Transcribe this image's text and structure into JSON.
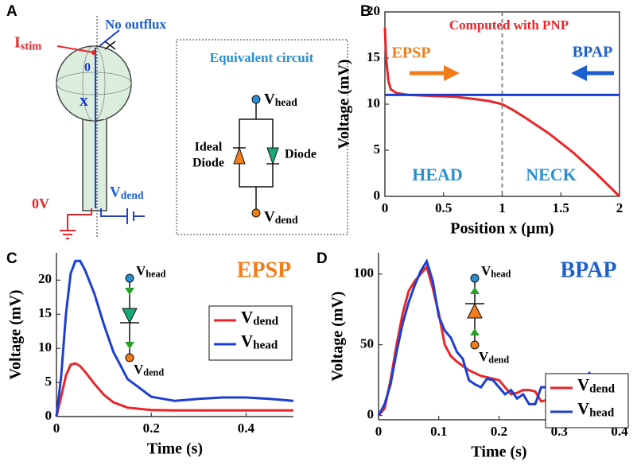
{
  "panel_labels": [
    "A",
    "B",
    "C",
    "D"
  ],
  "diagram": {
    "stimulus": "Istim",
    "boundary": "No outflux",
    "origin": "0",
    "axis": "x",
    "ground": "0V",
    "dend_source": "Vdend",
    "circuit_title": "Equivalent circuit",
    "circuit_top": "Vhead",
    "ideal_diode": [
      "Ideal",
      "Diode"
    ],
    "diode": "Diode",
    "circuit_bottom": "Vdend"
  },
  "chart_data": [
    {
      "type": "line",
      "xlabel": "Position x (µm)",
      "ylabel": "Voltage (mV)",
      "x": [
        0,
        0.01,
        0.03,
        0.05,
        0.1,
        0.2,
        0.4,
        0.6,
        0.8,
        0.9,
        1.0,
        1.1,
        1.2,
        1.4,
        1.6,
        1.8,
        2.0
      ],
      "series": [
        {
          "color": "#e8262a",
          "values": [
            18.3,
            15,
            12.5,
            11.6,
            11.2,
            11.0,
            10.9,
            10.8,
            10.5,
            10.3,
            10.0,
            9.3,
            8.5,
            6.8,
            4.8,
            2.5,
            0
          ]
        },
        {
          "color": "#1c3fd1",
          "values": [
            11,
            11,
            11,
            11,
            11,
            11,
            11,
            11,
            11,
            11,
            11,
            11,
            11,
            11,
            11,
            11,
            11
          ]
        }
      ],
      "xlim": [
        0,
        2
      ],
      "ylim": [
        0,
        20
      ],
      "xticks": [
        0,
        0.5,
        1,
        1.5,
        2
      ],
      "yticks": [
        0,
        5,
        10,
        15,
        20
      ],
      "vline": 1,
      "box": true,
      "annotations": [
        {
          "text": "Computed with PNP",
          "color": "#e8262a"
        },
        {
          "text": "EPSP",
          "color": "#f07d1a"
        },
        {
          "text": "BPAP",
          "color": "#1c5fd1"
        },
        {
          "text": "HEAD",
          "color": "#2a8fd1"
        },
        {
          "text": "NECK",
          "color": "#2a8fd1"
        }
      ]
    },
    {
      "type": "line",
      "title": "EPSP",
      "title_color": "#f07d1a",
      "xlabel": "Time (s)",
      "ylabel": "Voltage (mV)",
      "x": [
        0,
        0.01,
        0.02,
        0.03,
        0.04,
        0.05,
        0.06,
        0.08,
        0.1,
        0.12,
        0.15,
        0.2,
        0.25,
        0.3,
        0.35,
        0.4,
        0.45,
        0.5
      ],
      "series": [
        {
          "name": "Vdend",
          "color": "#e8262a",
          "values": [
            0,
            3,
            6,
            7.6,
            7.8,
            7.4,
            6.6,
            4.8,
            3.2,
            2.1,
            1.3,
            0.95,
            0.9,
            0.9,
            0.9,
            0.9,
            0.9,
            0.9
          ]
        },
        {
          "name": "Vhead",
          "color": "#1c3fd1",
          "values": [
            0,
            6,
            15,
            21,
            22.8,
            22.8,
            21.5,
            18,
            13.5,
            9.5,
            5.5,
            2.9,
            2.3,
            2.6,
            2.8,
            2.8,
            2.6,
            2.3
          ]
        }
      ],
      "xlim": [
        0,
        0.5
      ],
      "ylim": [
        0,
        24
      ],
      "xticks": [
        0,
        0.2,
        0.4
      ],
      "yticks": [
        0,
        5,
        10,
        15,
        20
      ],
      "legend": "right",
      "inset": {
        "top": "Vhead",
        "bottom": "Vdend"
      }
    },
    {
      "type": "line",
      "title": "BPAP",
      "title_color": "#1c5fd1",
      "xlabel": "Time (s)",
      "ylabel": "Voltage (mV)",
      "x": [
        0,
        0.01,
        0.02,
        0.03,
        0.04,
        0.05,
        0.06,
        0.07,
        0.08,
        0.09,
        0.1,
        0.11,
        0.12,
        0.13,
        0.14,
        0.15,
        0.16,
        0.17,
        0.18,
        0.19,
        0.2,
        0.21,
        0.22,
        0.23,
        0.24,
        0.25,
        0.26,
        0.27,
        0.28,
        0.29,
        0.3,
        0.31,
        0.32,
        0.33,
        0.34,
        0.35,
        0.36,
        0.37,
        0.38,
        0.39,
        0.4
      ],
      "series": [
        {
          "name": "Vdend",
          "color": "#e8262a",
          "values": [
            0,
            5,
            25,
            50,
            72,
            88,
            95,
            100,
            105,
            90,
            72,
            50,
            42,
            38,
            35,
            32,
            30,
            28,
            27,
            26,
            25,
            20,
            15,
            16,
            18,
            18,
            17,
            10,
            11,
            12,
            5,
            4,
            10,
            10,
            11,
            10,
            9,
            10,
            8,
            10,
            10
          ]
        },
        {
          "name": "Vhead",
          "color": "#1c3fd1",
          "values": [
            0,
            8,
            22,
            45,
            65,
            80,
            92,
            102,
            109,
            95,
            70,
            60,
            55,
            45,
            40,
            25,
            22,
            20,
            26,
            25,
            20,
            15,
            18,
            12,
            15,
            8,
            8,
            20,
            20,
            12,
            22,
            25,
            18,
            27,
            25,
            30,
            25,
            28,
            25,
            26,
            22
          ]
        }
      ],
      "xlim": [
        0,
        0.4
      ],
      "ylim": [
        -3,
        115
      ],
      "xticks": [
        0,
        0.1,
        0.2,
        0.3,
        0.4
      ],
      "yticks": [
        0,
        50,
        100
      ],
      "legend": "lower right",
      "inset": {
        "top": "Vhead",
        "bottom": "Vdend"
      }
    }
  ]
}
